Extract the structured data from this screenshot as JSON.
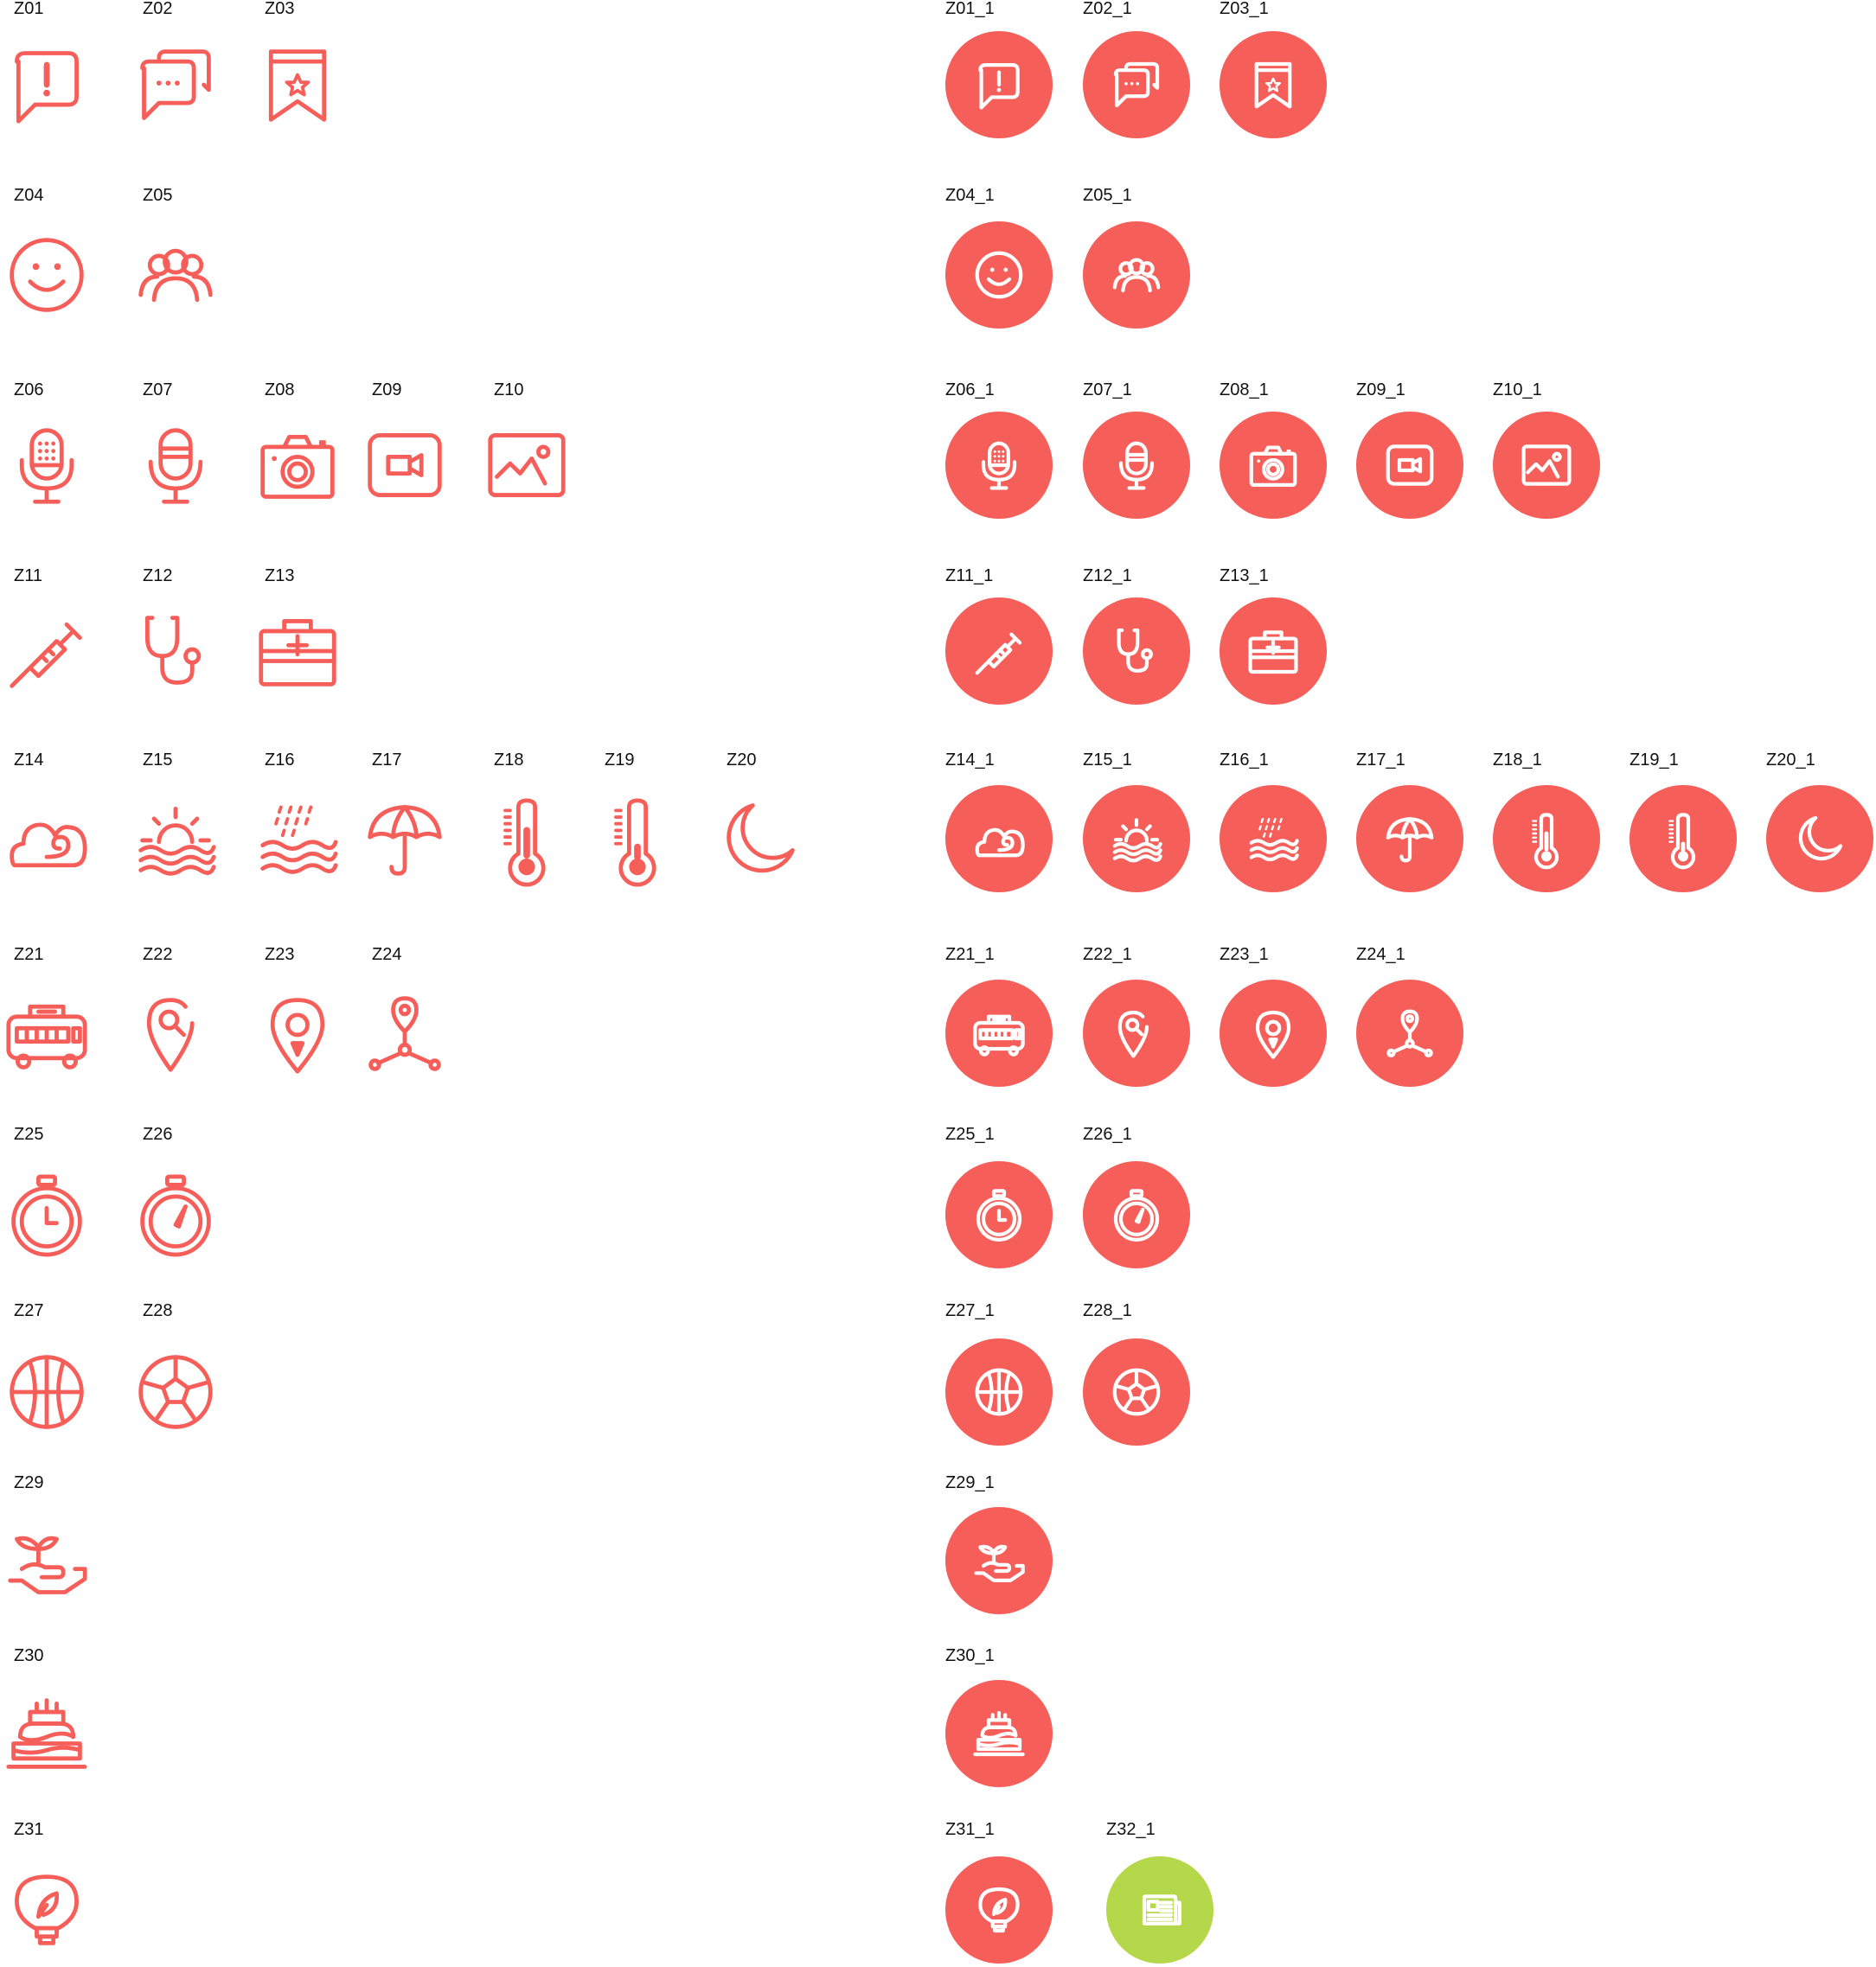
{
  "colors": {
    "accent": "#F65E59",
    "lime": "#B5D84A",
    "on_circle": "#FFFFFF",
    "label": "#111111"
  },
  "outline_icons": [
    {
      "label": "Z01",
      "icon": "alert-speech-bubble-icon"
    },
    {
      "label": "Z02",
      "icon": "chat-bubbles-icon"
    },
    {
      "label": "Z03",
      "icon": "bookmark-star-icon"
    },
    {
      "label": "Z04",
      "icon": "smiley-face-icon"
    },
    {
      "label": "Z05",
      "icon": "user-group-icon"
    },
    {
      "label": "Z06",
      "icon": "studio-microphone-icon"
    },
    {
      "label": "Z07",
      "icon": "microphone-icon"
    },
    {
      "label": "Z08",
      "icon": "camera-icon"
    },
    {
      "label": "Z09",
      "icon": "video-camera-icon"
    },
    {
      "label": "Z10",
      "icon": "picture-icon"
    },
    {
      "label": "Z11",
      "icon": "syringe-icon"
    },
    {
      "label": "Z12",
      "icon": "stethoscope-icon"
    },
    {
      "label": "Z13",
      "icon": "first-aid-kit-icon"
    },
    {
      "label": "Z14",
      "icon": "wind-cloud-icon"
    },
    {
      "label": "Z15",
      "icon": "sunrise-waves-icon"
    },
    {
      "label": "Z16",
      "icon": "rain-waves-icon"
    },
    {
      "label": "Z17",
      "icon": "umbrella-icon"
    },
    {
      "label": "Z18",
      "icon": "thermometer-high-icon"
    },
    {
      "label": "Z19",
      "icon": "thermometer-low-icon"
    },
    {
      "label": "Z20",
      "icon": "crescent-moon-icon"
    },
    {
      "label": "Z21",
      "icon": "bus-icon"
    },
    {
      "label": "Z22",
      "icon": "location-search-icon"
    },
    {
      "label": "Z23",
      "icon": "location-pin-icon"
    },
    {
      "label": "Z24",
      "icon": "location-network-icon"
    },
    {
      "label": "Z25",
      "icon": "stopwatch-clock-icon"
    },
    {
      "label": "Z26",
      "icon": "stopwatch-gauge-icon"
    },
    {
      "label": "Z27",
      "icon": "basketball-icon"
    },
    {
      "label": "Z28",
      "icon": "soccer-ball-icon"
    },
    {
      "label": "Z29",
      "icon": "hand-sprout-icon"
    },
    {
      "label": "Z30",
      "icon": "birthday-cake-icon"
    },
    {
      "label": "Z31",
      "icon": "eco-bulb-icon"
    }
  ],
  "circle_icons": [
    {
      "label": "Z01_1",
      "icon": "alert-speech-bubble-icon"
    },
    {
      "label": "Z02_1",
      "icon": "chat-bubbles-icon"
    },
    {
      "label": "Z03_1",
      "icon": "bookmark-star-icon"
    },
    {
      "label": "Z04_1",
      "icon": "smiley-face-icon"
    },
    {
      "label": "Z05_1",
      "icon": "user-group-icon"
    },
    {
      "label": "Z06_1",
      "icon": "studio-microphone-icon"
    },
    {
      "label": "Z07_1",
      "icon": "microphone-icon"
    },
    {
      "label": "Z08_1",
      "icon": "camera-icon"
    },
    {
      "label": "Z09_1",
      "icon": "video-camera-icon"
    },
    {
      "label": "Z10_1",
      "icon": "picture-icon"
    },
    {
      "label": "Z11_1",
      "icon": "syringe-icon"
    },
    {
      "label": "Z12_1",
      "icon": "stethoscope-icon"
    },
    {
      "label": "Z13_1",
      "icon": "first-aid-kit-icon"
    },
    {
      "label": "Z14_1",
      "icon": "wind-cloud-icon"
    },
    {
      "label": "Z15_1",
      "icon": "sunrise-waves-icon"
    },
    {
      "label": "Z16_1",
      "icon": "rain-waves-icon"
    },
    {
      "label": "Z17_1",
      "icon": "umbrella-icon"
    },
    {
      "label": "Z18_1",
      "icon": "thermometer-high-icon"
    },
    {
      "label": "Z19_1",
      "icon": "thermometer-low-icon"
    },
    {
      "label": "Z20_1",
      "icon": "crescent-moon-icon"
    },
    {
      "label": "Z21_1",
      "icon": "bus-icon"
    },
    {
      "label": "Z22_1",
      "icon": "location-search-icon"
    },
    {
      "label": "Z23_1",
      "icon": "location-pin-icon"
    },
    {
      "label": "Z24_1",
      "icon": "location-network-icon"
    },
    {
      "label": "Z25_1",
      "icon": "stopwatch-clock-icon"
    },
    {
      "label": "Z26_1",
      "icon": "stopwatch-gauge-icon"
    },
    {
      "label": "Z27_1",
      "icon": "basketball-icon"
    },
    {
      "label": "Z28_1",
      "icon": "soccer-ball-icon"
    },
    {
      "label": "Z29_1",
      "icon": "hand-sprout-icon"
    },
    {
      "label": "Z30_1",
      "icon": "birthday-cake-icon"
    },
    {
      "label": "Z31_1",
      "icon": "eco-bulb-icon"
    },
    {
      "label": "Z32_1",
      "icon": "newspaper-icon",
      "color": "lime"
    }
  ]
}
